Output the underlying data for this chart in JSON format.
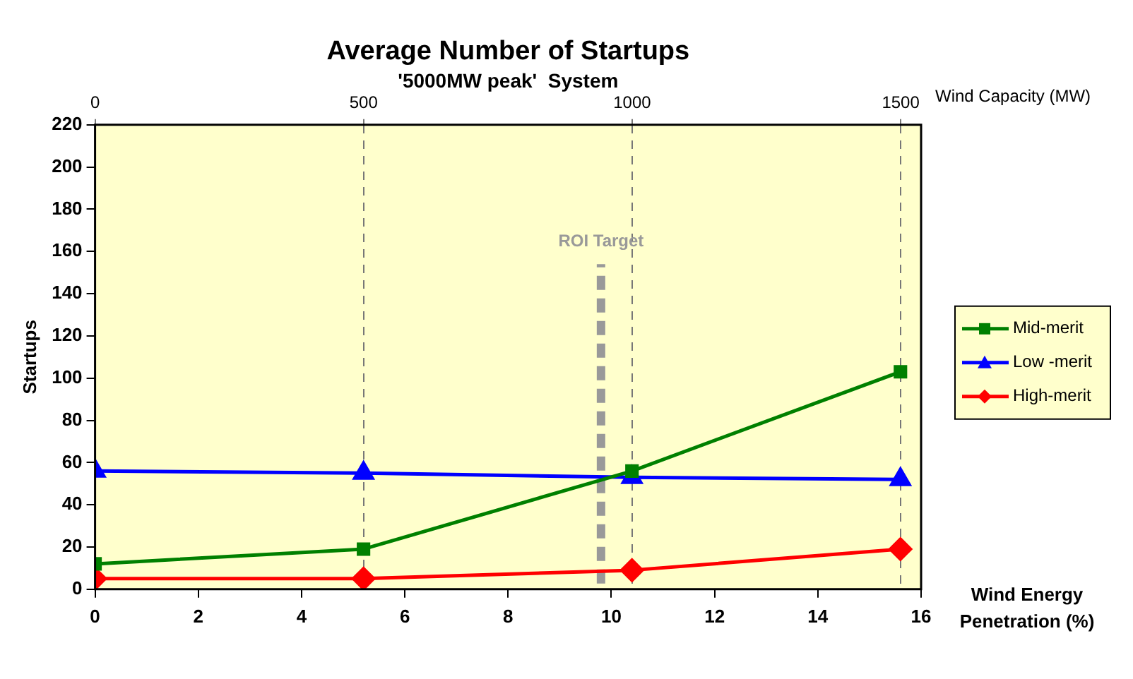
{
  "chart_data": {
    "type": "line",
    "title": "Average Number of Startups",
    "subtitle": "'5000MW peak'  System",
    "xlabel": "Wind Energy Penetration (%)",
    "ylabel": "Startups",
    "x2label": "Wind Capacity (MW)",
    "x": [
      0,
      5.2,
      10.4,
      15.6
    ],
    "series": [
      {
        "name": "Mid-merit",
        "color": "#008000",
        "marker": "square",
        "values": [
          12,
          19,
          56,
          103
        ]
      },
      {
        "name": "Low -merit",
        "color": "#0000ff",
        "marker": "triangle",
        "values": [
          56,
          55,
          53,
          52
        ]
      },
      {
        "name": "High-merit",
        "color": "#ff0000",
        "marker": "diamond",
        "values": [
          5,
          5,
          9,
          19
        ]
      }
    ],
    "xlim": [
      0,
      16
    ],
    "xticks": [
      0,
      2,
      4,
      6,
      8,
      10,
      12,
      14,
      16
    ],
    "x2lim": [
      0,
      1538
    ],
    "x2ticks": [
      0,
      500,
      1000,
      1500
    ],
    "ylim": [
      0,
      220
    ],
    "yticks": [
      0,
      20,
      40,
      60,
      80,
      100,
      120,
      140,
      160,
      180,
      200,
      220
    ],
    "ref_lines": [
      {
        "axis": "x",
        "value": 9.8,
        "label": "ROI Target",
        "color": "#999999",
        "line_style": "dashed"
      }
    ],
    "grid": "x",
    "legend": "right",
    "line_style": "solid"
  }
}
